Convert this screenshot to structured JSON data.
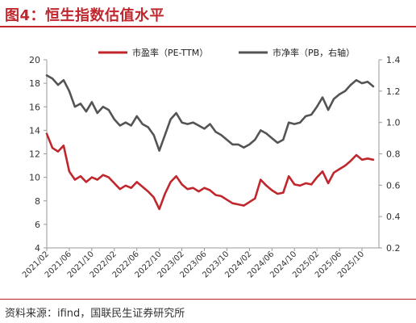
{
  "header": {
    "title": "图4：恒生指数估值水平"
  },
  "footer": {
    "source": "资料来源：ifind，国联民生证券研究所"
  },
  "colors": {
    "accent": "#c0272d",
    "pe": "#c0272d",
    "pb": "#545454"
  },
  "chart_data": {
    "type": "line",
    "legend_position": "top-center",
    "grid": false,
    "x_tick_labels": [
      "2021/02",
      "2021/06",
      "2021/10",
      "2022/02",
      "2022/06",
      "2022/10",
      "2023/02",
      "2023/06",
      "2023/10",
      "2024/02",
      "2024/06",
      "2024/10",
      "2025/02",
      "2025/06",
      "2025/10"
    ],
    "y_left": {
      "ticks": [
        4,
        6,
        8,
        10,
        12,
        14,
        16,
        18,
        20
      ],
      "ylim": [
        4,
        20
      ]
    },
    "y_right": {
      "ticks": [
        "0.2",
        "0.4",
        "0.6",
        "0.8",
        "1.0",
        "1.2",
        "1.4"
      ],
      "ylim": [
        0.2,
        1.4
      ]
    },
    "series": [
      {
        "name": "市盈率（PE-TTM）",
        "axis": "left",
        "x": [
          "2021/02",
          "2021/03",
          "2021/04",
          "2021/05",
          "2021/06",
          "2021/07",
          "2021/08",
          "2021/09",
          "2021/10",
          "2021/11",
          "2021/12",
          "2022/01",
          "2022/02",
          "2022/03",
          "2022/04",
          "2022/05",
          "2022/06",
          "2022/07",
          "2022/08",
          "2022/09",
          "2022/10",
          "2022/11",
          "2022/12",
          "2023/01",
          "2023/02",
          "2023/03",
          "2023/04",
          "2023/05",
          "2023/06",
          "2023/07",
          "2023/08",
          "2023/09",
          "2023/10",
          "2023/11",
          "2023/12",
          "2024/01",
          "2024/02",
          "2024/03",
          "2024/04",
          "2024/05",
          "2024/06",
          "2024/07",
          "2024/08",
          "2024/09",
          "2024/10",
          "2024/11",
          "2024/12",
          "2025/01",
          "2025/02",
          "2025/03",
          "2025/04",
          "2025/05",
          "2025/06",
          "2025/07",
          "2025/08",
          "2025/09",
          "2025/10",
          "2025/11",
          "2025/12"
        ],
        "y": [
          13.7,
          12.5,
          12.2,
          12.7,
          10.5,
          9.8,
          10.1,
          9.6,
          10.0,
          9.8,
          10.2,
          10.0,
          9.5,
          9.0,
          9.3,
          9.1,
          9.6,
          9.2,
          8.8,
          8.3,
          7.3,
          8.6,
          9.6,
          10.1,
          9.4,
          9.0,
          9.1,
          8.8,
          9.1,
          8.9,
          8.5,
          8.4,
          8.1,
          7.8,
          7.7,
          7.6,
          7.9,
          8.2,
          9.8,
          9.3,
          8.9,
          8.6,
          8.7,
          10.1,
          9.4,
          9.3,
          9.5,
          9.4,
          10.0,
          10.5,
          9.5,
          10.4,
          10.7,
          11.0,
          11.4,
          11.9,
          11.5,
          11.6,
          11.5
        ]
      },
      {
        "name": "市净率（PB，右轴）",
        "axis": "right",
        "x": [
          "2021/02",
          "2021/03",
          "2021/04",
          "2021/05",
          "2021/06",
          "2021/07",
          "2021/08",
          "2021/09",
          "2021/10",
          "2021/11",
          "2021/12",
          "2022/01",
          "2022/02",
          "2022/03",
          "2022/04",
          "2022/05",
          "2022/06",
          "2022/07",
          "2022/08",
          "2022/09",
          "2022/10",
          "2022/11",
          "2022/12",
          "2023/01",
          "2023/02",
          "2023/03",
          "2023/04",
          "2023/05",
          "2023/06",
          "2023/07",
          "2023/08",
          "2023/09",
          "2023/10",
          "2023/11",
          "2023/12",
          "2024/01",
          "2024/02",
          "2024/03",
          "2024/04",
          "2024/05",
          "2024/06",
          "2024/07",
          "2024/08",
          "2024/09",
          "2024/10",
          "2024/11",
          "2024/12",
          "2025/01",
          "2025/02",
          "2025/03",
          "2025/04",
          "2025/05",
          "2025/06",
          "2025/07",
          "2025/08",
          "2025/09",
          "2025/10",
          "2025/11",
          "2025/12"
        ],
        "y": [
          1.3,
          1.28,
          1.24,
          1.27,
          1.2,
          1.1,
          1.12,
          1.07,
          1.13,
          1.06,
          1.1,
          1.08,
          1.02,
          0.98,
          1.0,
          0.98,
          1.04,
          0.99,
          0.97,
          0.92,
          0.82,
          0.92,
          1.02,
          1.06,
          1.0,
          0.99,
          1.0,
          0.98,
          0.96,
          0.99,
          0.94,
          0.92,
          0.89,
          0.86,
          0.86,
          0.84,
          0.86,
          0.89,
          0.95,
          0.93,
          0.9,
          0.87,
          0.89,
          1.0,
          0.99,
          1.0,
          1.04,
          1.05,
          1.1,
          1.16,
          1.08,
          1.15,
          1.18,
          1.2,
          1.24,
          1.27,
          1.25,
          1.26,
          1.23
        ]
      }
    ]
  }
}
